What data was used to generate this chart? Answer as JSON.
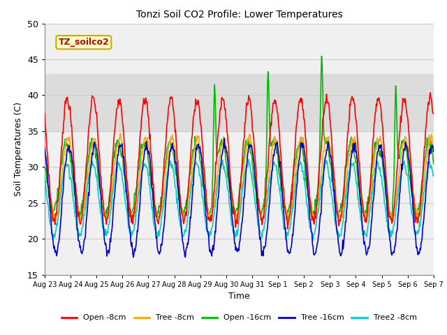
{
  "title": "Tonzi Soil CO2 Profile: Lower Temperatures",
  "xlabel": "Time",
  "ylabel": "Soil Temperatures (C)",
  "ylim": [
    15,
    50
  ],
  "annotation_text": "TZ_soilco2",
  "annotation_bg": "#FFFFCC",
  "annotation_border": "#CCAA00",
  "annotation_text_color": "#CC0000",
  "shaded_region": [
    35,
    43
  ],
  "tick_labels": [
    "Aug 23",
    "Aug 24",
    "Aug 25",
    "Aug 26",
    "Aug 27",
    "Aug 28",
    "Aug 29",
    "Aug 30",
    "Aug 31",
    "Sep 1",
    "Sep 2",
    "Sep 3",
    "Sep 4",
    "Sep 5",
    "Sep 6",
    "Sep 7"
  ],
  "legend_entries": [
    "Open -8cm",
    "Tree -8cm",
    "Open -16cm",
    "Tree -16cm",
    "Tree2 -8cm"
  ],
  "line_colors": [
    "#FF0000",
    "#FFA500",
    "#00BB00",
    "#0000CC",
    "#00CCCC"
  ],
  "background_color": "#F0F0F0"
}
